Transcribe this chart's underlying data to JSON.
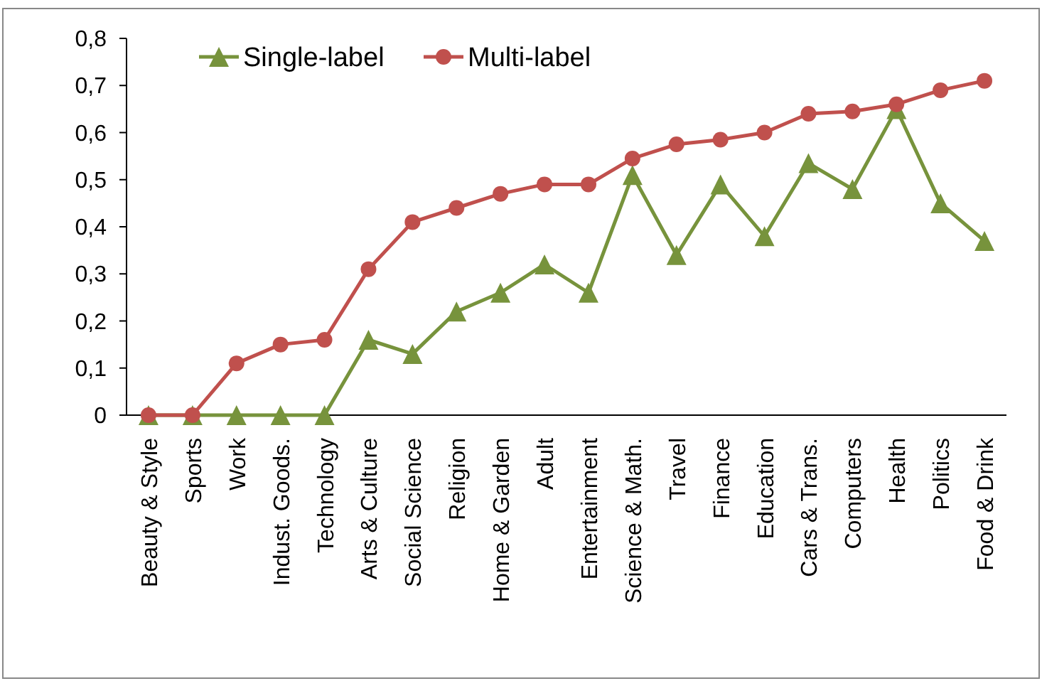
{
  "chart_data": {
    "type": "line",
    "categories": [
      "Beauty & Style",
      "Sports",
      "Work",
      "Indust. Goods.",
      "Technology",
      "Arts & Culture",
      "Social Science",
      "Religion",
      "Home & Garden",
      "Adult",
      "Entertainment",
      "Science & Math.",
      "Travel",
      "Finance",
      "Education",
      "Cars & Trans.",
      "Computers",
      "Health",
      "Politics",
      "Food & Drink"
    ],
    "series": [
      {
        "name": "Single-label",
        "color": "#77933c",
        "marker": "triangle",
        "values": [
          0,
          0,
          0,
          0,
          0,
          0.16,
          0.13,
          0.22,
          0.26,
          0.32,
          0.26,
          0.51,
          0.34,
          0.49,
          0.38,
          0.535,
          0.48,
          0.65,
          0.45,
          0.37
        ]
      },
      {
        "name": "Multi-label",
        "color": "#c0504d",
        "marker": "circle",
        "values": [
          0,
          0,
          0.11,
          0.15,
          0.16,
          0.31,
          0.41,
          0.44,
          0.47,
          0.49,
          0.49,
          0.545,
          0.575,
          0.585,
          0.6,
          0.64,
          0.645,
          0.66,
          0.69,
          0.71
        ]
      }
    ],
    "ylim": [
      0,
      0.8
    ],
    "yticks": [
      0,
      {
        "value": 0.1,
        "label": "0,1"
      },
      {
        "value": 0.2,
        "label": "0,2"
      },
      {
        "value": 0.3,
        "label": "0,3"
      },
      {
        "value": 0.4,
        "label": "0,4"
      },
      {
        "value": 0.5,
        "label": "0,5"
      },
      {
        "value": 0.6,
        "label": "0,6"
      },
      {
        "value": 0.7,
        "label": "0,7"
      },
      {
        "value": 0.8,
        "label": "0,8"
      }
    ],
    "grid": false,
    "legend": "top",
    "line_style": "solid"
  }
}
